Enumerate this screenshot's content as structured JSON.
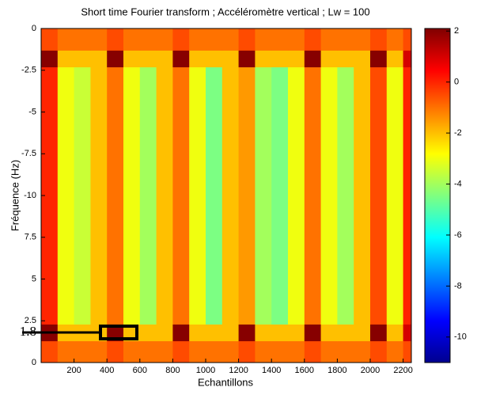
{
  "chart_data": {
    "type": "heatmap",
    "title": "Short time Fourier transform ; Accéléromètre vertical ; Lw = 100",
    "xlabel": "Echantillons",
    "ylabel": "Fréquence (Hz)",
    "xlim": [
      0,
      2250
    ],
    "xticks": [
      200,
      400,
      600,
      800,
      1000,
      1200,
      1400,
      1600,
      1800,
      2000,
      2200
    ],
    "ylim": [
      0,
      20
    ],
    "yticks": [
      0,
      2.5,
      5,
      7.5,
      {
        "value": 10,
        "label": "-10"
      },
      {
        "value": 12.5,
        "label": "-7.5"
      },
      {
        "value": 15,
        "label": "-5"
      },
      {
        "value": 17.5,
        "label": "-2.5"
      },
      {
        "value": 20,
        "label": "0"
      }
    ],
    "x_edges": [
      0,
      100,
      200,
      300,
      400,
      500,
      600,
      700,
      800,
      900,
      1000,
      1100,
      1200,
      1300,
      1400,
      1500,
      1600,
      1700,
      1800,
      1900,
      2000,
      2100,
      2200,
      2250
    ],
    "y_edges": [
      0,
      1.3,
      2.3,
      17.7,
      18.7,
      20
    ],
    "z": [
      [
        -0.5,
        -1,
        -1,
        -1,
        -0.5,
        -1,
        -1,
        -1,
        -0.5,
        -1,
        -1,
        -1,
        -0.5,
        -1,
        -1,
        -1,
        -0.5,
        -1,
        -1,
        -1,
        -0.5,
        -1,
        -0.5
      ],
      [
        2,
        -2,
        -2,
        -2,
        2,
        -2,
        -2,
        -2,
        2,
        -2,
        -2,
        -2,
        2,
        -2,
        -2,
        -2,
        2,
        -2,
        -2,
        -2,
        2,
        -2,
        1
      ],
      [
        0,
        -3,
        -3.5,
        -2,
        -1,
        -3,
        -4,
        -2,
        -1,
        -3,
        -4.5,
        -2,
        -1.5,
        -4,
        -4.5,
        -3,
        -1,
        -3,
        -4,
        -2,
        -0.5,
        -3,
        0
      ],
      [
        2,
        -2,
        -2,
        -2,
        2,
        -2,
        -2,
        -2,
        2,
        -2,
        -2,
        -2,
        2,
        -2,
        -2,
        -2,
        2,
        -2,
        -2,
        -2,
        2,
        -2,
        1
      ],
      [
        -0.5,
        -1,
        -1,
        -1,
        -0.5,
        -1,
        -1,
        -1,
        -0.5,
        -1,
        -1,
        -1,
        -0.5,
        -1,
        -1,
        -1,
        -0.5,
        -1,
        -1,
        -1,
        -0.5,
        -1,
        -0.5
      ]
    ],
    "clim": [
      -11,
      2.1
    ],
    "cticks": [
      2,
      0,
      -2,
      -4,
      -6,
      -8,
      -10
    ],
    "annotation": 1.8
  }
}
